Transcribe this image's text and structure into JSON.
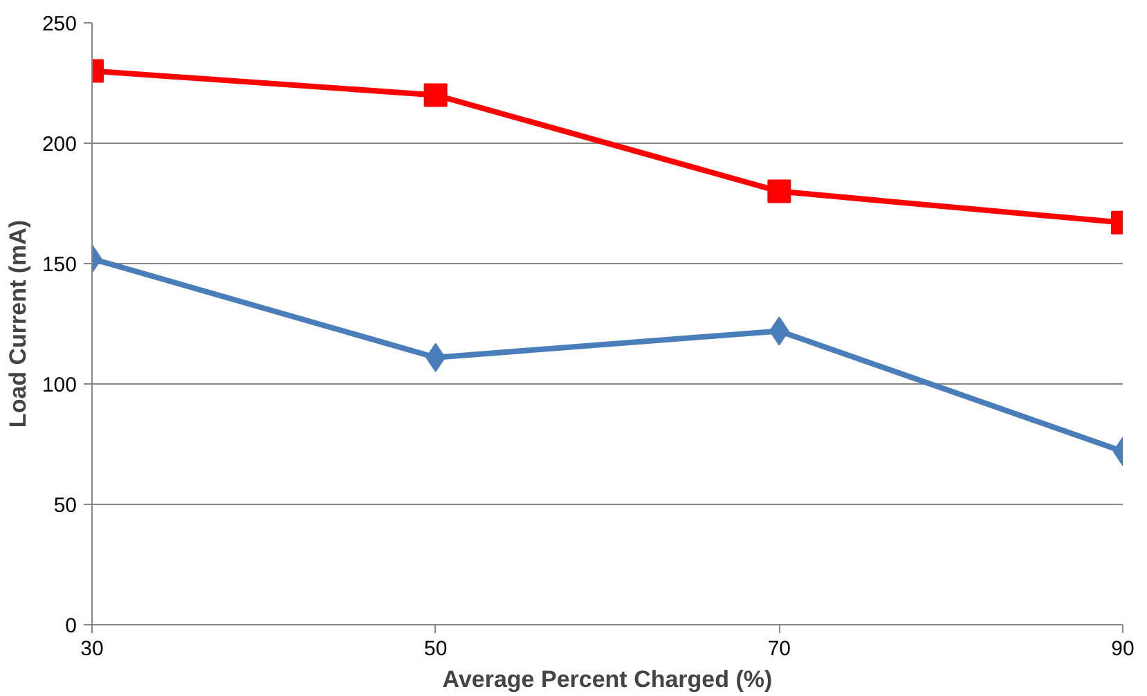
{
  "chart_data": {
    "type": "line",
    "xlabel": "Average Percent Charged (%)",
    "ylabel": "Load Current (mA)",
    "x": [
      30,
      50,
      70,
      90
    ],
    "series": [
      {
        "color": "#ff0000",
        "marker": "square",
        "values": [
          230,
          220,
          180,
          167
        ]
      },
      {
        "color": "#4a7ebb",
        "marker": "diamond",
        "values": [
          152,
          111,
          122,
          72
        ]
      }
    ],
    "xlim": [
      30,
      90
    ],
    "xticks": [
      30,
      50,
      70,
      90
    ],
    "ylim": [
      0,
      250
    ],
    "yticks": [
      0,
      50,
      100,
      150,
      200,
      250
    ],
    "grid": "y",
    "line_style": "solid"
  }
}
